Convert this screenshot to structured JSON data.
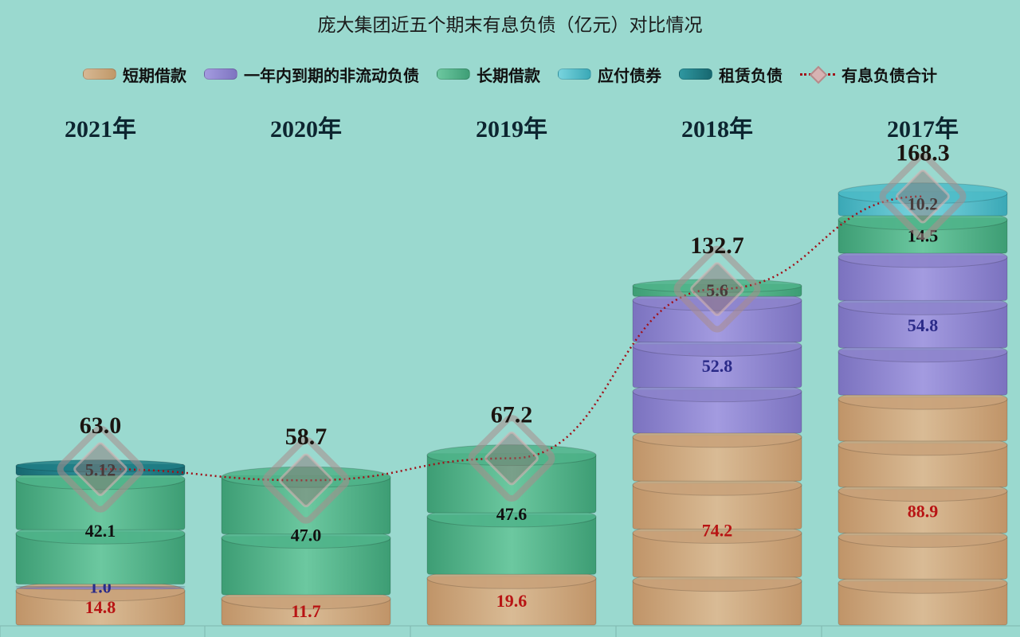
{
  "chart_data": {
    "type": "bar",
    "title": "庞大集团近五个期末有息负债（亿元）对比情况",
    "categories": [
      "2021年",
      "2020年",
      "2019年",
      "2018年",
      "2017年"
    ],
    "series": [
      {
        "name": "短期借款",
        "values": [
          14.8,
          11.7,
          19.6,
          74.2,
          88.9
        ],
        "color": "#c9a27a",
        "label_color": "#b81414"
      },
      {
        "name": "一年内到期的非流动负债",
        "values": [
          1.0,
          0,
          0,
          52.8,
          54.8
        ],
        "color": "#8d84cc",
        "label_color": "#2a2a88"
      },
      {
        "name": "长期借款",
        "values": [
          42.1,
          47.0,
          47.6,
          5.6,
          14.5
        ],
        "color": "#4fb48a",
        "label_color": "#111111"
      },
      {
        "name": "应付债券",
        "values": [
          0,
          0,
          0,
          0,
          10.2
        ],
        "color": "#4dbcc8",
        "label_color": "#111111"
      },
      {
        "name": "租赁负债",
        "values": [
          5.12,
          0,
          0,
          0,
          0
        ],
        "color": "#1f7e86",
        "label_color": "#111111"
      }
    ],
    "value_labels": [
      [
        "14.8",
        "1.0",
        "42.1",
        "",
        "5.12"
      ],
      [
        "11.7",
        "",
        "47.0",
        "",
        ""
      ],
      [
        "19.6",
        "",
        "47.6",
        "",
        ""
      ],
      [
        "74.2",
        "52.8",
        "5.6",
        "",
        ""
      ],
      [
        "88.9",
        "54.8",
        "14.5",
        "10.2",
        ""
      ]
    ],
    "totals": {
      "name": "有息负债合计",
      "values": [
        63.0,
        58.7,
        67.2,
        132.7,
        168.3
      ],
      "labels": [
        "63.0",
        "58.7",
        "67.2",
        "132.7",
        "168.3"
      ],
      "color": "#a01018"
    },
    "ylim": [
      0,
      180
    ],
    "legend_position": "top",
    "grid": false
  }
}
